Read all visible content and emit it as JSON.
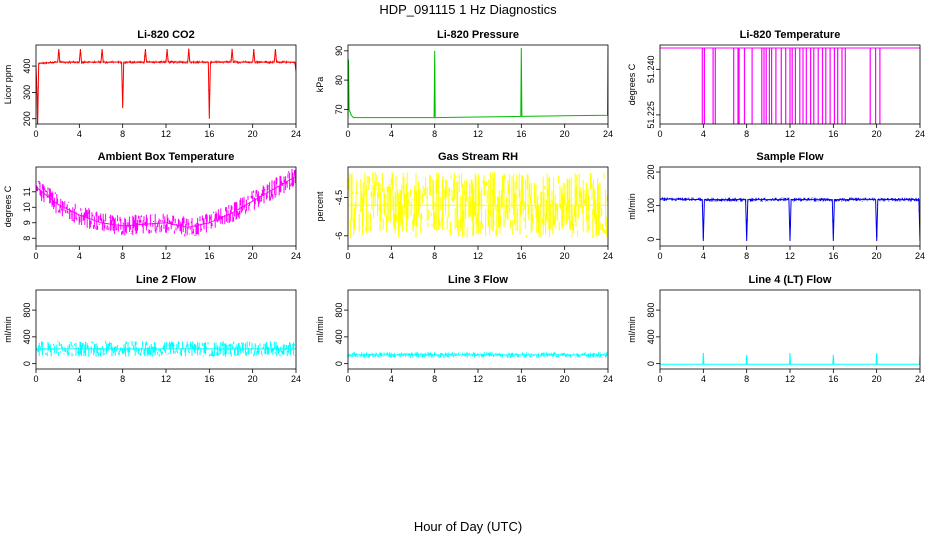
{
  "title": "HDP_091115  1 Hz Diagnostics",
  "xlabel": "Hour of Day (UTC)",
  "chart_data": [
    {
      "type": "line",
      "title": "Li-820 CO2",
      "ylabel": "Licor ppm",
      "color": "#ff0000",
      "xlim": [
        0,
        24
      ],
      "ylim": [
        180,
        480
      ],
      "yticks": [
        200,
        300,
        400
      ],
      "xticks": [
        0,
        4,
        8,
        12,
        16,
        20,
        24
      ],
      "series": [
        {
          "x": [
            0,
            0.1,
            0.15,
            0.25,
            2,
            2.1,
            2.2,
            4,
            4.1,
            4.2,
            6,
            6.1,
            6.2,
            7.9,
            8,
            8.1,
            10,
            10.1,
            10.2,
            12,
            12.1,
            12.2,
            14,
            14.1,
            14.2,
            15.9,
            16,
            16.1,
            18,
            18.1,
            18.2,
            20,
            20.1,
            20.2,
            22,
            22.1,
            22.2,
            23.9,
            24
          ],
          "y": [
            400,
            290,
            160,
            410,
            415,
            465,
            415,
            415,
            465,
            415,
            415,
            465,
            415,
            415,
            240,
            415,
            415,
            465,
            415,
            415,
            465,
            415,
            415,
            465,
            415,
            415,
            200,
            415,
            415,
            465,
            415,
            415,
            465,
            415,
            415,
            465,
            415,
            415,
            380
          ]
        }
      ]
    },
    {
      "type": "line",
      "title": "Li-820 Pressure",
      "ylabel": "kPa",
      "color": "#00bb00",
      "xlim": [
        0,
        24
      ],
      "ylim": [
        65,
        92
      ],
      "yticks": [
        70,
        80,
        90
      ],
      "xticks": [
        0,
        4,
        8,
        12,
        16,
        20,
        24
      ],
      "series": [
        {
          "x": [
            0,
            0.05,
            0.1,
            0.3,
            0.5,
            7.95,
            8,
            8.05,
            12,
            15.95,
            16,
            16.05,
            20,
            23.95,
            24
          ],
          "y": [
            67,
            87,
            70,
            68,
            67.2,
            67.2,
            90,
            67.2,
            67.4,
            67.6,
            91,
            67.6,
            67.8,
            68,
            91
          ]
        }
      ]
    },
    {
      "type": "line",
      "title": "Li-820 Temperature",
      "ylabel": "degrees C",
      "color": "#ff00ff",
      "xlim": [
        0,
        24
      ],
      "ylim": [
        51.222,
        51.248
      ],
      "yticks": [
        51.225,
        51.24
      ],
      "xticks": [
        0,
        4,
        8,
        12,
        16,
        20,
        24
      ],
      "series": [
        {
          "x": [
            0,
            24
          ],
          "y": [
            51.247,
            51.247
          ]
        }
      ]
    },
    {
      "type": "line",
      "title": "Ambient Box Temperature",
      "ylabel": "degrees C",
      "color": "#ff00ff",
      "xlim": [
        0,
        24
      ],
      "ylim": [
        7.5,
        12.6
      ],
      "yticks": [
        8,
        9,
        10,
        11
      ],
      "xticks": [
        0,
        4,
        8,
        12,
        16,
        20,
        24
      ],
      "series": [
        {
          "x": [
            0,
            2,
            4,
            6,
            8,
            10,
            12,
            14,
            16,
            18,
            20,
            22,
            24
          ],
          "y": [
            11.3,
            10.2,
            9.5,
            9.0,
            8.8,
            8.9,
            9.0,
            8.7,
            9.0,
            9.6,
            10.4,
            11.2,
            12.0
          ]
        }
      ]
    },
    {
      "type": "line",
      "title": "Gas Stream RH",
      "ylabel": "percent",
      "color": "#ffff00",
      "xlim": [
        0,
        24
      ],
      "ylim": [
        -6.4,
        -3.3
      ],
      "yticks": [
        -6.0,
        -4.5
      ],
      "xticks": [
        0,
        4,
        8,
        12,
        16,
        20,
        24
      ],
      "series": [
        {
          "x": [
            0,
            24
          ],
          "y": [
            -4.8,
            -4.8
          ]
        }
      ]
    },
    {
      "type": "line",
      "title": "Sample Flow",
      "ylabel": "ml/min",
      "color": "#0000ee",
      "xlim": [
        0,
        24
      ],
      "ylim": [
        -20,
        215
      ],
      "yticks": [
        0,
        100,
        200
      ],
      "xticks": [
        0,
        4,
        8,
        12,
        16,
        20,
        24
      ],
      "series": [
        {
          "x": [
            0,
            3.9,
            4,
            4.1,
            7.9,
            8,
            8.1,
            11.9,
            12,
            12.1,
            15.9,
            16,
            16.1,
            19.9,
            20,
            20.1,
            23.9,
            24
          ],
          "y": [
            120,
            118,
            -5,
            118,
            118,
            -5,
            118,
            118,
            -5,
            118,
            118,
            -5,
            118,
            118,
            -5,
            118,
            118,
            -5
          ]
        }
      ]
    },
    {
      "type": "line",
      "title": "Line 2 Flow",
      "ylabel": "ml/min",
      "color": "#00ffff",
      "xlim": [
        0,
        24
      ],
      "ylim": [
        -80,
        1100
      ],
      "yticks": [
        0,
        400,
        800
      ],
      "xticks": [
        0,
        4,
        8,
        12,
        16,
        20,
        24
      ],
      "series": [
        {
          "x": [
            0,
            24
          ],
          "y": [
            220,
            220
          ]
        }
      ]
    },
    {
      "type": "line",
      "title": "Line 3 Flow",
      "ylabel": "ml/min",
      "color": "#00ffff",
      "xlim": [
        0,
        24
      ],
      "ylim": [
        -80,
        1100
      ],
      "yticks": [
        0,
        400,
        800
      ],
      "xticks": [
        0,
        4,
        8,
        12,
        16,
        20,
        24
      ],
      "series": [
        {
          "x": [
            0,
            24
          ],
          "y": [
            130,
            130
          ]
        }
      ]
    },
    {
      "type": "line",
      "title": "Line 4 (LT) Flow",
      "ylabel": "ml/min",
      "color": "#00ffff",
      "xlim": [
        0,
        24
      ],
      "ylim": [
        -80,
        1100
      ],
      "yticks": [
        0,
        400,
        800
      ],
      "xticks": [
        0,
        4,
        8,
        12,
        16,
        20,
        24
      ],
      "series": [
        {
          "x": [
            0,
            3.95,
            4,
            4.05,
            7.95,
            8,
            8.05,
            11.95,
            12,
            12.05,
            15.95,
            16,
            16.05,
            19.95,
            20,
            20.05,
            23.95,
            24
          ],
          "y": [
            -10,
            -10,
            160,
            -10,
            -10,
            130,
            -10,
            -10,
            160,
            -10,
            -10,
            130,
            -10,
            -10,
            160,
            -10,
            -10,
            130
          ]
        }
      ]
    }
  ]
}
